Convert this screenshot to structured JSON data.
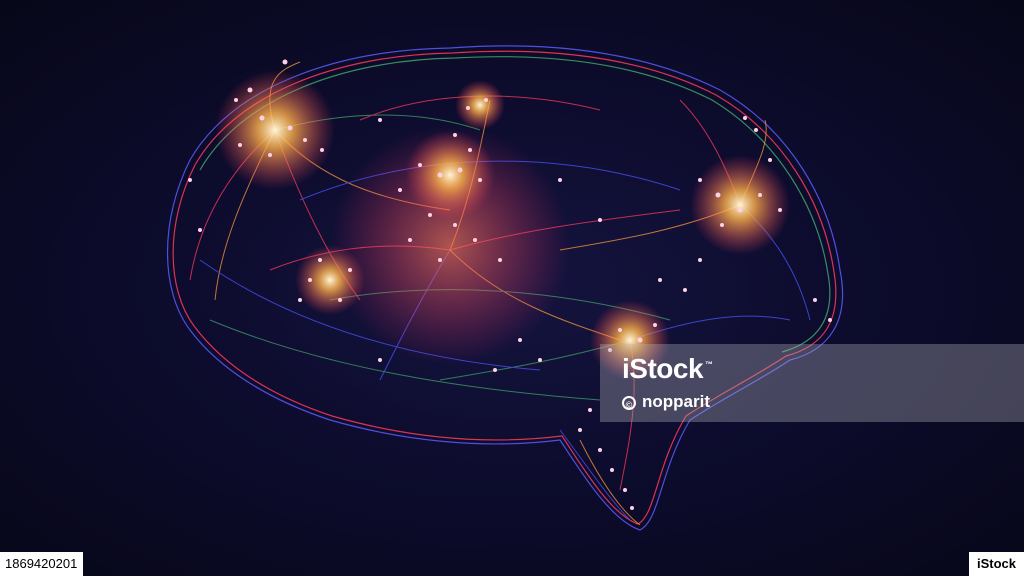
{
  "watermark": {
    "brand": "iStock",
    "trademark": "™",
    "credit_symbol": "©",
    "credit": "nopparit"
  },
  "footer": {
    "image_id": "1869420201",
    "badge_label": "iStock"
  },
  "colors": {
    "background": "#0a0a24",
    "fiber_red": "#ff3a5c",
    "fiber_orange": "#ff9a3a",
    "fiber_blue": "#4b55ff",
    "fiber_green": "#3fa36a",
    "node_glow": "#ffd0e6"
  }
}
